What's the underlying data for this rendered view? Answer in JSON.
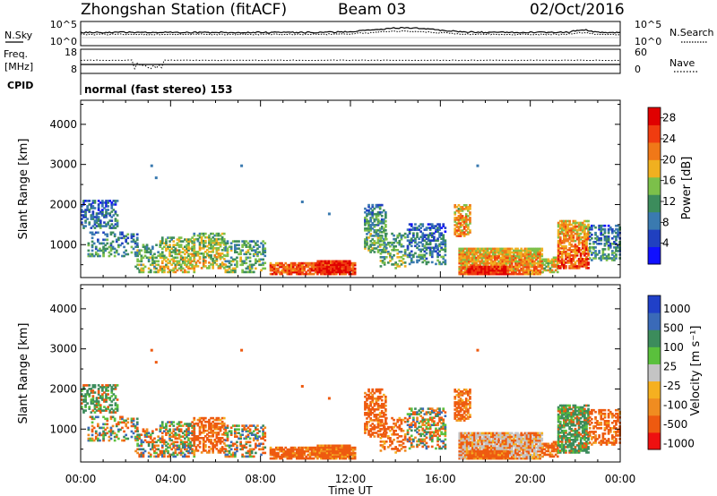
{
  "header": {
    "station": "Zhongshan Station (fitACF)",
    "beam": "Beam 03",
    "date": "02/Oct/2016"
  },
  "top_panels": {
    "nsky_label": "N.Sky",
    "nsky_ticks": [
      "10^5",
      "10^0"
    ],
    "nsearch_label": "N.Search",
    "nsearch_ticks": [
      "10^5",
      "10^0"
    ],
    "freq_label_1": "Freq.",
    "freq_label_2": "[MHz]",
    "freq_ticks": [
      "18",
      "8"
    ],
    "nave_label": "Nave",
    "nave_ticks": [
      "60",
      "0"
    ],
    "cpid_label": "CPID",
    "cpid_text": "normal (fast stereo) 153"
  },
  "colors": {
    "power_scale": [
      "#1010ff",
      "#2040c0",
      "#3a7ab0",
      "#3c8c5c",
      "#7cc04a",
      "#f0b020",
      "#f07818",
      "#f03c10",
      "#e00000"
    ],
    "velocity_scale": [
      "#ee1010",
      "#ee5a10",
      "#f08c20",
      "#f5b020",
      "#c4c4c4",
      "#5ac03c",
      "#3c8c5c",
      "#3a6ab8",
      "#2040c8"
    ]
  },
  "chart_data": [
    {
      "type": "heatmap",
      "name_text": "Power panel",
      "xlabel": "Time UT",
      "ylabel": "Slant Range [km]",
      "xticks": [
        "00:00",
        "04:00",
        "08:00",
        "12:00",
        "16:00",
        "20:00",
        "00:00"
      ],
      "yticks": [
        "1000",
        "2000",
        "3000",
        "4000"
      ],
      "ylim": [
        180,
        4600
      ],
      "colorbar_label": "Power [dB]",
      "colorbar_ticks": [
        "4",
        "8",
        "12",
        "16",
        "20",
        "24",
        "28"
      ],
      "colorbar_range": [
        0,
        30
      ]
    },
    {
      "type": "heatmap",
      "name_text": "Velocity panel",
      "xlabel": "Time UT",
      "ylabel": "Slant Range [km]",
      "xticks": [
        "00:00",
        "04:00",
        "08:00",
        "12:00",
        "16:00",
        "20:00",
        "00:00"
      ],
      "yticks": [
        "1000",
        "2000",
        "3000",
        "4000"
      ],
      "ylim": [
        180,
        4600
      ],
      "colorbar_label": "Velocity [m s⁻¹]",
      "colorbar_ticks": [
        "1000",
        "500",
        "100",
        "25",
        "-25",
        "-100",
        "-500",
        "-1000"
      ]
    }
  ]
}
